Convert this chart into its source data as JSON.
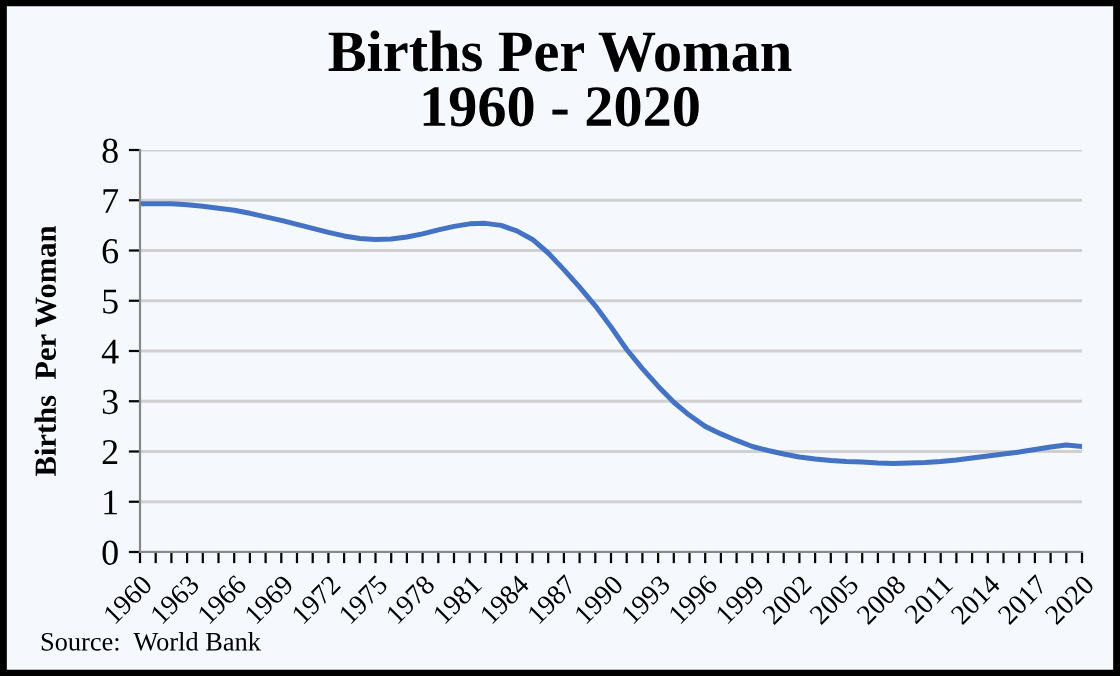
{
  "chart_data": {
    "type": "line",
    "title": "Births Per Woman\n1960 - 2020",
    "ylabel": "Births  Per Woman",
    "categories": [
      "1960",
      null,
      null,
      "1963",
      null,
      null,
      "1966",
      null,
      null,
      "1969",
      null,
      null,
      "1972",
      null,
      null,
      "1975",
      null,
      null,
      "1978",
      null,
      null,
      "1981",
      null,
      null,
      "1984",
      null,
      null,
      "1987",
      null,
      null,
      "1990",
      null,
      null,
      "1993",
      null,
      null,
      "1996",
      null,
      null,
      "1999",
      null,
      null,
      "2002",
      null,
      null,
      "2005",
      null,
      null,
      "2008",
      null,
      null,
      "2011",
      null,
      null,
      "2014",
      null,
      null,
      "2017",
      null,
      null,
      "2020"
    ],
    "series": [
      {
        "color": "#4472c4",
        "values": [
          6.93,
          6.93,
          6.93,
          6.91,
          6.88,
          6.84,
          6.8,
          6.74,
          6.67,
          6.6,
          6.52,
          6.44,
          6.36,
          6.29,
          6.24,
          6.22,
          6.23,
          6.27,
          6.33,
          6.41,
          6.48,
          6.53,
          6.54,
          6.5,
          6.39,
          6.22,
          5.95,
          5.62,
          5.27,
          4.9,
          4.48,
          4.03,
          3.65,
          3.3,
          2.98,
          2.72,
          2.5,
          2.35,
          2.22,
          2.1,
          2.02,
          1.95,
          1.89,
          1.85,
          1.82,
          1.8,
          1.79,
          1.77,
          1.76,
          1.77,
          1.78,
          1.8,
          1.83,
          1.87,
          1.91,
          1.95,
          1.99,
          2.04,
          2.09,
          2.13,
          2.1
        ]
      }
    ],
    "ylim": [
      0,
      8
    ],
    "yticks": [
      0,
      1,
      2,
      3,
      4,
      5,
      6,
      7,
      8
    ],
    "grid": "y",
    "marker": "none",
    "line_style": "solid",
    "legend": false,
    "annotations": [
      "Source:  World Bank"
    ]
  }
}
